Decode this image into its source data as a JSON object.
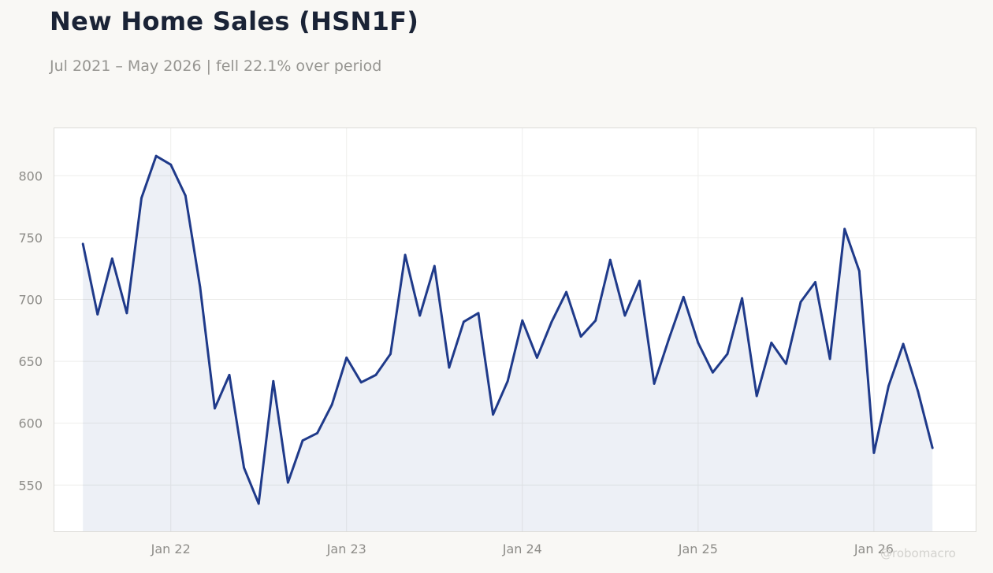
{
  "header": {
    "title": "New Home Sales (HSN1F)",
    "subtitle": "Jul 2021 – May 2026 | fell 22.1% over period"
  },
  "watermark": "@robomacro",
  "colors": {
    "line": "#1f3a8a",
    "fill": "#1f3a8a",
    "background": "#f9f8f5",
    "plot_bg": "#ffffff"
  },
  "chart_data": {
    "type": "area",
    "title": "New Home Sales (HSN1F)",
    "subtitle": "Jul 2021 – May 2026 | fell 22.1% over period",
    "xlabel": "",
    "ylabel": "",
    "ylim": [
      512,
      839
    ],
    "xlim": [
      "2021-05",
      "2026-08"
    ],
    "grid": true,
    "legend": "none",
    "y_ticks": [
      550,
      600,
      650,
      700,
      750,
      800
    ],
    "x_ticks": [
      {
        "label": "Jan 22",
        "date": "2022-01"
      },
      {
        "label": "Jan 23",
        "date": "2023-01"
      },
      {
        "label": "Jan 24",
        "date": "2024-01"
      },
      {
        "label": "Jan 25",
        "date": "2025-01"
      },
      {
        "label": "Jan 26",
        "date": "2026-01"
      }
    ],
    "series": [
      {
        "x": [
          "2021-07",
          "2021-08",
          "2021-09",
          "2021-10",
          "2021-11",
          "2021-12",
          "2022-01",
          "2022-02",
          "2022-03",
          "2022-04",
          "2022-05",
          "2022-06",
          "2022-07",
          "2022-08",
          "2022-09",
          "2022-10",
          "2022-11",
          "2022-12",
          "2023-01",
          "2023-02",
          "2023-03",
          "2023-04",
          "2023-05",
          "2023-06",
          "2023-07",
          "2023-08",
          "2023-09",
          "2023-10",
          "2023-11",
          "2023-12",
          "2024-01",
          "2024-02",
          "2024-03",
          "2024-04",
          "2024-05",
          "2024-06",
          "2024-07",
          "2024-08",
          "2024-09",
          "2024-10",
          "2024-11",
          "2024-12",
          "2025-01",
          "2025-02",
          "2025-03",
          "2025-04",
          "2025-05",
          "2025-06",
          "2025-07",
          "2025-08",
          "2025-09",
          "2025-10",
          "2025-11",
          "2025-12",
          "2026-01",
          "2026-02",
          "2026-03",
          "2026-04",
          "2026-05"
        ],
        "values": [
          745,
          688,
          733,
          689,
          782,
          816,
          809,
          784,
          710,
          612,
          639,
          564,
          535,
          634,
          552,
          586,
          592,
          615,
          653,
          633,
          639,
          656,
          736,
          687,
          727,
          645,
          682,
          689,
          607,
          634,
          683,
          653,
          682,
          706,
          670,
          683,
          732,
          687,
          715,
          632,
          668,
          702,
          665,
          641,
          656,
          701,
          622,
          665,
          648,
          698,
          714,
          652,
          757,
          723,
          576,
          630,
          664,
          626,
          580
        ]
      }
    ]
  }
}
